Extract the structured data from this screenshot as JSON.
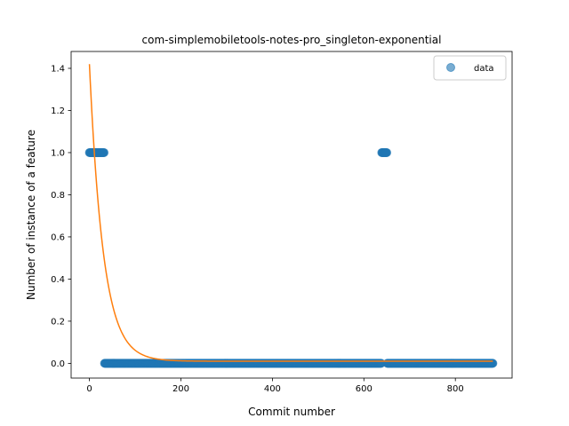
{
  "chart_data": {
    "type": "scatter",
    "title": "com-simplemobiletools-notes-pro_singleton-exponential",
    "xlabel": "Commit number",
    "ylabel": "Number of instance of a feature",
    "xlim": [
      -40,
      924
    ],
    "ylim": [
      -0.07,
      1.48
    ],
    "xticks": [
      0,
      200,
      400,
      600,
      800
    ],
    "yticks": [
      0.0,
      0.2,
      0.4,
      0.6,
      0.8,
      1.0,
      1.2,
      1.4
    ],
    "grid": false,
    "legend": {
      "placement": "top-right",
      "entries": [
        "data"
      ]
    },
    "series": [
      {
        "name": "data",
        "kind": "points",
        "color": "#1f77b4",
        "segments": [
          {
            "x_from": 0,
            "x_to": 32,
            "y": 1.0
          },
          {
            "x_from": 33,
            "x_to": 638,
            "y": 0.0
          },
          {
            "x_from": 639,
            "x_to": 650,
            "y": 1.0
          },
          {
            "x_from": 651,
            "x_to": 882,
            "y": 0.0
          }
        ]
      },
      {
        "kind": "exponential-fit",
        "color": "#ff7f0e",
        "x_from": 0,
        "x_to": 882,
        "y0": 1.41,
        "decay": 0.033,
        "offset": 0.01
      }
    ]
  }
}
